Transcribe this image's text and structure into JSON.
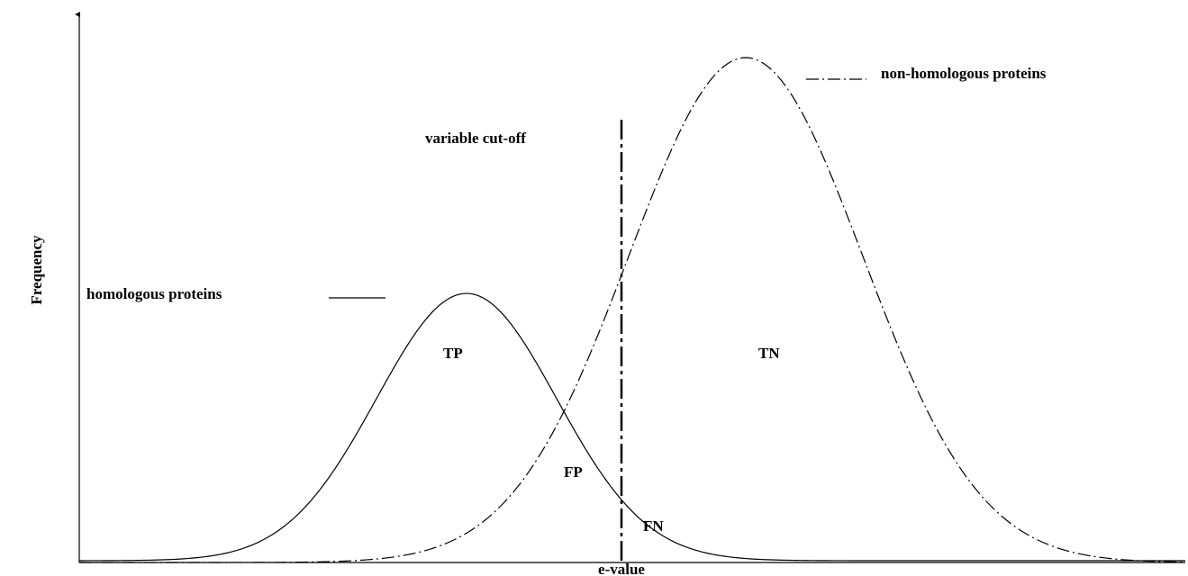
{
  "axes": {
    "y_label": "Frequency",
    "x_label": "e-value"
  },
  "curves": {
    "homologous": "homologous proteins",
    "non_homologous": "non-homologous proteins"
  },
  "cutoff": "variable cut-off",
  "regions": {
    "tp": "TP",
    "tn": "TN",
    "fp": "FP",
    "fn": "FN"
  }
}
